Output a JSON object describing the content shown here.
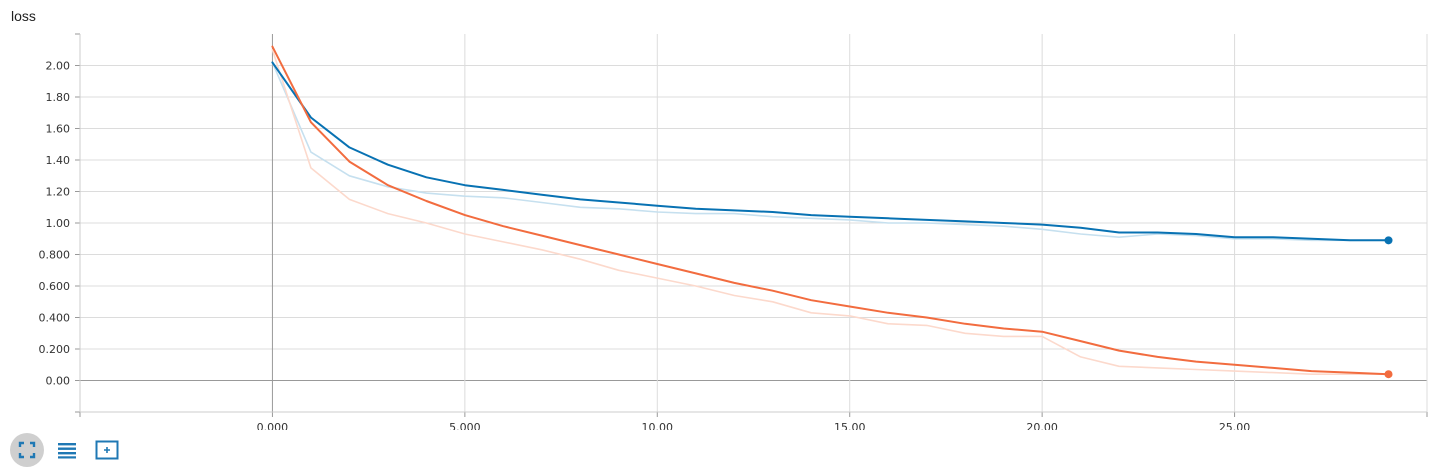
{
  "chart_title": "loss",
  "toolbar": {
    "buttons": [
      {
        "icon": "fullscreen-icon",
        "active": true
      },
      {
        "icon": "list-icon",
        "active": false
      },
      {
        "icon": "fit-domain-icon",
        "active": false
      }
    ]
  },
  "colors": {
    "accent": "#1f78b4",
    "blue_smoothed": "#0872b3",
    "blue_raw": "#c6e0ef",
    "orange_smoothed": "#f26c3f",
    "orange_raw": "#fcd9cc",
    "grid": "#dcdcdc",
    "axis": "#999999"
  },
  "chart_data": {
    "type": "line",
    "title": "loss",
    "xlabel": "",
    "ylabel": "",
    "xlim": [
      -5,
      30
    ],
    "ylim": [
      -0.2,
      2.2
    ],
    "x_ticks": [
      0,
      5,
      10,
      15,
      20,
      25
    ],
    "x_tick_labels": [
      "0.000",
      "5.000",
      "10.00",
      "15.00",
      "20.00",
      "25.00"
    ],
    "y_ticks": [
      0,
      0.2,
      0.4,
      0.6,
      0.8,
      1.0,
      1.2,
      1.4,
      1.6,
      1.8,
      2.0
    ],
    "y_tick_labels": [
      "0.00",
      "0.200",
      "0.400",
      "0.600",
      "0.800",
      "1.00",
      "1.20",
      "1.40",
      "1.60",
      "1.80",
      "2.00"
    ],
    "grid": true,
    "legend": "none",
    "series": [
      {
        "color": "#c6e0ef",
        "x": [
          0,
          1,
          2,
          3,
          4,
          5,
          6,
          7,
          8,
          9,
          10,
          11,
          12,
          13,
          14,
          15,
          16,
          17,
          18,
          19,
          20,
          21,
          22,
          23,
          24,
          25,
          26,
          27,
          28,
          29
        ],
        "y": [
          2.02,
          1.45,
          1.3,
          1.23,
          1.19,
          1.17,
          1.16,
          1.13,
          1.1,
          1.09,
          1.07,
          1.06,
          1.06,
          1.04,
          1.03,
          1.02,
          1.0,
          1.0,
          0.99,
          0.98,
          0.96,
          0.93,
          0.91,
          0.93,
          0.92,
          0.9,
          0.9,
          0.89,
          0.89,
          0.89
        ]
      },
      {
        "color": "#fcd9cc",
        "x": [
          0,
          1,
          2,
          3,
          4,
          5,
          6,
          7,
          8,
          9,
          10,
          11,
          12,
          13,
          14,
          15,
          16,
          17,
          18,
          19,
          20,
          21,
          22,
          23,
          24,
          25,
          26,
          27,
          28,
          29
        ],
        "y": [
          2.1,
          1.35,
          1.15,
          1.06,
          1.0,
          0.93,
          0.88,
          0.83,
          0.77,
          0.7,
          0.65,
          0.6,
          0.54,
          0.5,
          0.43,
          0.41,
          0.36,
          0.35,
          0.3,
          0.28,
          0.28,
          0.15,
          0.09,
          0.08,
          0.07,
          0.06,
          0.05,
          0.04,
          0.04,
          0.04
        ]
      },
      {
        "color": "#0872b3",
        "x": [
          0,
          1,
          2,
          3,
          4,
          5,
          6,
          7,
          8,
          9,
          10,
          11,
          12,
          13,
          14,
          15,
          16,
          17,
          18,
          19,
          20,
          21,
          22,
          23,
          24,
          25,
          26,
          27,
          28,
          29
        ],
        "y": [
          2.02,
          1.67,
          1.48,
          1.37,
          1.29,
          1.24,
          1.21,
          1.18,
          1.15,
          1.13,
          1.11,
          1.09,
          1.08,
          1.07,
          1.05,
          1.04,
          1.03,
          1.02,
          1.01,
          1.0,
          0.99,
          0.97,
          0.94,
          0.94,
          0.93,
          0.91,
          0.91,
          0.9,
          0.89,
          0.89
        ]
      },
      {
        "color": "#f26c3f",
        "x": [
          0,
          1,
          2,
          3,
          4,
          5,
          6,
          7,
          8,
          9,
          10,
          11,
          12,
          13,
          14,
          15,
          16,
          17,
          18,
          19,
          20,
          21,
          22,
          23,
          24,
          25,
          26,
          27,
          28,
          29
        ],
        "y": [
          2.12,
          1.64,
          1.39,
          1.24,
          1.14,
          1.05,
          0.98,
          0.92,
          0.86,
          0.8,
          0.74,
          0.68,
          0.62,
          0.57,
          0.51,
          0.47,
          0.43,
          0.4,
          0.36,
          0.33,
          0.31,
          0.25,
          0.19,
          0.15,
          0.12,
          0.1,
          0.08,
          0.06,
          0.05,
          0.04
        ]
      }
    ]
  }
}
